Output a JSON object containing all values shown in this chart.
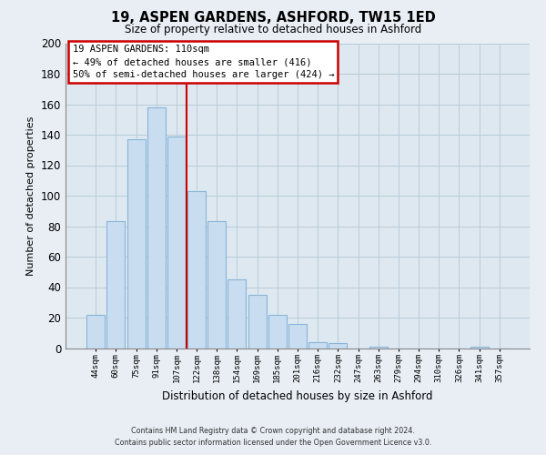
{
  "title": "19, ASPEN GARDENS, ASHFORD, TW15 1ED",
  "subtitle": "Size of property relative to detached houses in Ashford",
  "xlabel": "Distribution of detached houses by size in Ashford",
  "ylabel": "Number of detached properties",
  "bar_labels": [
    "44sqm",
    "60sqm",
    "75sqm",
    "91sqm",
    "107sqm",
    "122sqm",
    "138sqm",
    "154sqm",
    "169sqm",
    "185sqm",
    "201sqm",
    "216sqm",
    "232sqm",
    "247sqm",
    "263sqm",
    "279sqm",
    "294sqm",
    "310sqm",
    "326sqm",
    "341sqm",
    "357sqm"
  ],
  "bar_values": [
    22,
    83,
    137,
    158,
    139,
    103,
    83,
    45,
    35,
    22,
    16,
    4,
    3,
    0,
    1,
    0,
    0,
    0,
    0,
    1,
    0
  ],
  "bar_color": "#c8ddf0",
  "bar_edge_color": "#8ab4d8",
  "ylim": [
    0,
    200
  ],
  "yticks": [
    0,
    20,
    40,
    60,
    80,
    100,
    120,
    140,
    160,
    180,
    200
  ],
  "redline_x": 4.5,
  "annotation_title": "19 ASPEN GARDENS: 110sqm",
  "annotation_line1": "← 49% of detached houses are smaller (416)",
  "annotation_line2": "50% of semi-detached houses are larger (424) →",
  "annotation_box_color": "#ffffff",
  "annotation_box_edge": "#cc0000",
  "red_line_color": "#cc0000",
  "footer1": "Contains HM Land Registry data © Crown copyright and database right 2024.",
  "footer2": "Contains public sector information licensed under the Open Government Licence v3.0.",
  "bg_color": "#e8eef4",
  "plot_bg_color": "#dde8f0",
  "grid_color": "#b8ccd8"
}
